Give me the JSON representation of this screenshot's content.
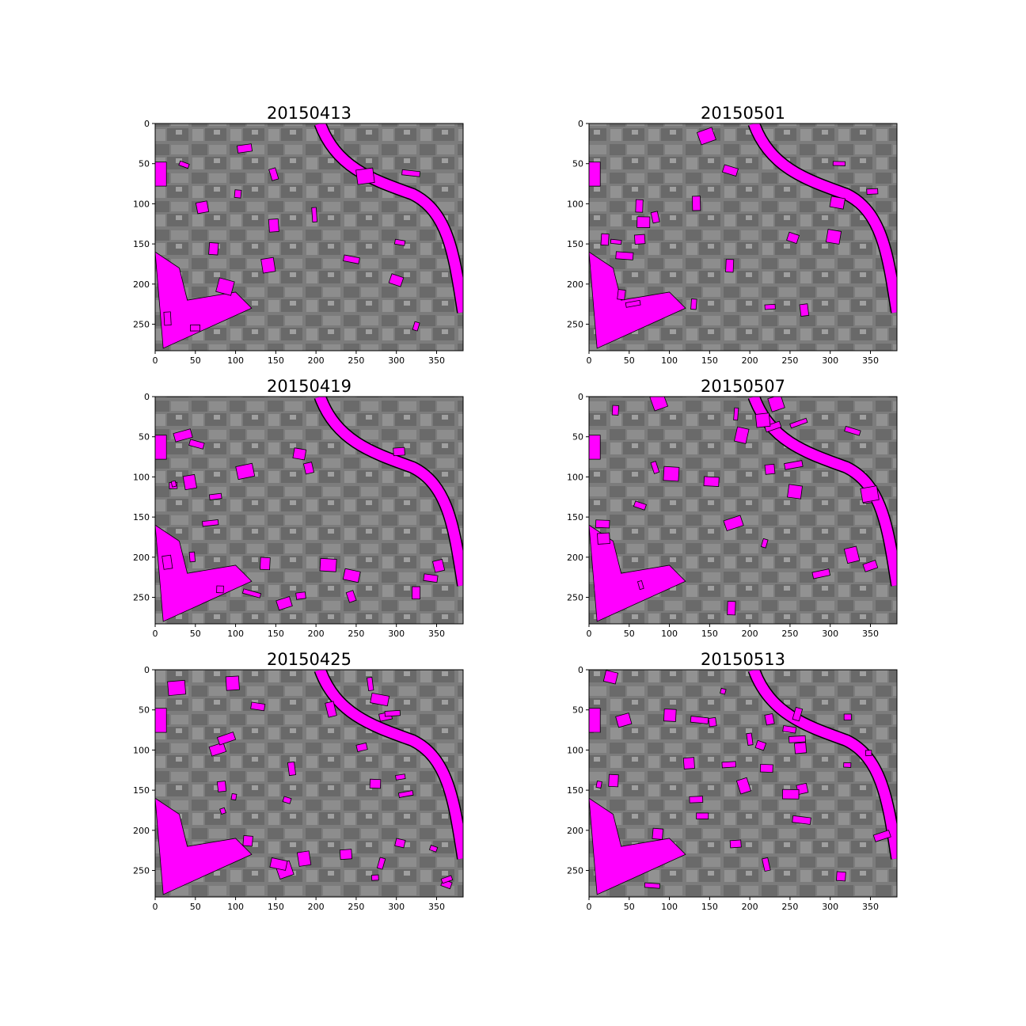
{
  "figure": {
    "panels": [
      {
        "title": "20150413"
      },
      {
        "title": "20150501"
      },
      {
        "title": "20150419"
      },
      {
        "title": "20150507"
      },
      {
        "title": "20150425"
      },
      {
        "title": "20150513"
      }
    ],
    "x_ticks": [
      "0",
      "50",
      "100",
      "150",
      "200",
      "250",
      "300",
      "350"
    ],
    "y_ticks": [
      "0",
      "50",
      "100",
      "150",
      "200",
      "250"
    ],
    "image_extent": {
      "width": 383,
      "height": 283
    },
    "colors": {
      "overlay": "#ff00ff",
      "outline": "#000000",
      "background": "#7a7a7a"
    }
  }
}
